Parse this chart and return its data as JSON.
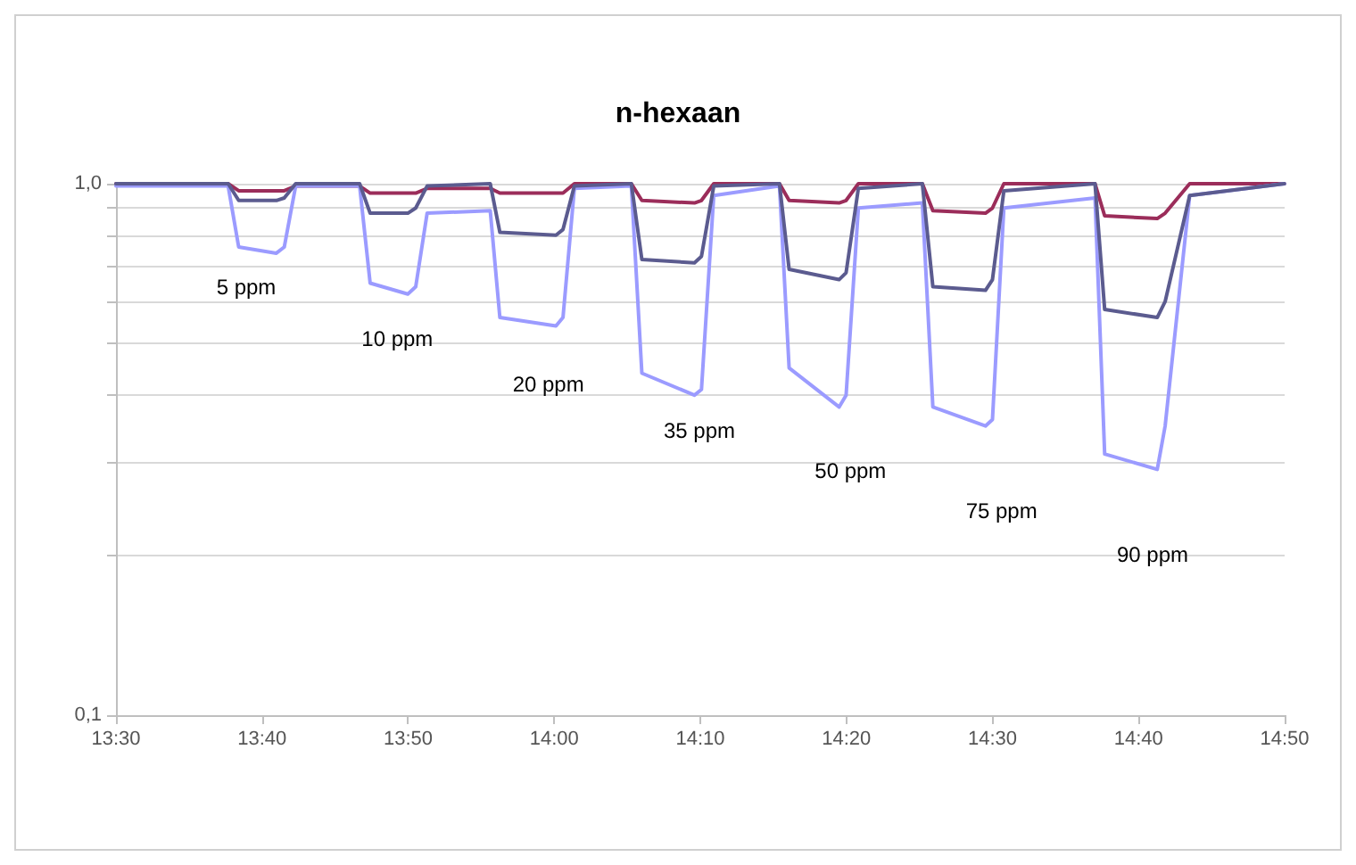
{
  "chart_data": {
    "type": "line",
    "title": "n-hexaan",
    "log": "y",
    "grid": "y",
    "marker": "none",
    "line_style": "solid",
    "x": [
      13.5,
      13.628,
      13.64,
      13.683,
      13.692,
      13.705,
      13.778,
      13.79,
      13.833,
      13.842,
      13.855,
      13.927,
      13.938,
      14.002,
      14.01,
      14.023,
      14.088,
      14.1,
      14.16,
      14.168,
      14.182,
      14.257,
      14.268,
      14.325,
      14.333,
      14.347,
      14.42,
      14.432,
      14.492,
      14.5,
      14.513,
      14.617,
      14.628,
      14.688,
      14.697,
      14.725,
      14.833
    ],
    "series": [
      {
        "color": "#9b2d5a",
        "values": [
          1.0,
          1.0,
          0.97,
          0.97,
          0.97,
          0.99,
          0.99,
          0.96,
          0.96,
          0.96,
          0.98,
          0.98,
          0.96,
          0.96,
          0.96,
          1.0,
          1.0,
          0.93,
          0.92,
          0.93,
          1.0,
          1.0,
          0.93,
          0.92,
          0.93,
          1.0,
          1.0,
          0.89,
          0.88,
          0.9,
          1.0,
          1.0,
          0.87,
          0.86,
          0.88,
          1.0,
          1.0
        ]
      },
      {
        "color": "#9b9bff",
        "values": [
          0.99,
          0.99,
          0.76,
          0.74,
          0.76,
          0.99,
          0.99,
          0.65,
          0.62,
          0.64,
          0.88,
          0.89,
          0.56,
          0.54,
          0.56,
          0.98,
          0.99,
          0.44,
          0.4,
          0.41,
          0.95,
          0.99,
          0.45,
          0.38,
          0.4,
          0.9,
          0.92,
          0.38,
          0.35,
          0.36,
          0.9,
          0.94,
          0.31,
          0.29,
          0.35,
          0.95,
          1.0
        ]
      },
      {
        "color": "#5b5b8f",
        "values": [
          1.0,
          1.0,
          0.93,
          0.93,
          0.94,
          1.0,
          1.0,
          0.88,
          0.88,
          0.9,
          0.99,
          1.0,
          0.81,
          0.8,
          0.82,
          0.99,
          1.0,
          0.72,
          0.71,
          0.73,
          0.99,
          1.0,
          0.69,
          0.66,
          0.68,
          0.98,
          1.0,
          0.64,
          0.63,
          0.66,
          0.97,
          1.0,
          0.58,
          0.56,
          0.6,
          0.95,
          1.0
        ]
      }
    ],
    "xlim": [
      13.5,
      14.833333
    ],
    "xticks": [
      {
        "value": 13.5,
        "label": "13:30"
      },
      {
        "value": 13.666667,
        "label": "13:40"
      },
      {
        "value": 13.833333,
        "label": "13:50"
      },
      {
        "value": 14,
        "label": "14:00"
      },
      {
        "value": 14.166667,
        "label": "14:10"
      },
      {
        "value": 14.333333,
        "label": "14:20"
      },
      {
        "value": 14.5,
        "label": "14:30"
      },
      {
        "value": 14.666667,
        "label": "14:40"
      },
      {
        "value": 14.833333,
        "label": "14:50"
      }
    ],
    "ylim": [
      0.1,
      1.0
    ],
    "yticks": [
      {
        "value": 0.1,
        "label": "0,1"
      },
      {
        "value": 0.2,
        "label": null
      },
      {
        "value": 0.3,
        "label": null
      },
      {
        "value": 0.4,
        "label": null
      },
      {
        "value": 0.5,
        "label": null
      },
      {
        "value": 0.6,
        "label": null
      },
      {
        "value": 0.7,
        "label": null
      },
      {
        "value": 0.8,
        "label": null
      },
      {
        "value": 0.9,
        "label": null
      },
      {
        "value": 1.0,
        "label": "1,0"
      }
    ],
    "annotations": [
      "5 ppm",
      "10 ppm",
      "20 ppm",
      "35 ppm",
      "50 ppm",
      "75 ppm",
      "90 ppm"
    ]
  }
}
